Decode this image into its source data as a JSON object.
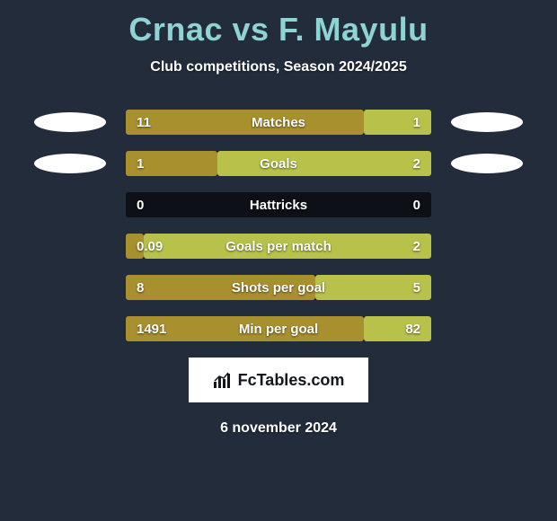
{
  "header": {
    "player1": "Crnac",
    "vs": "vs",
    "player2": "F. Mayulu",
    "subtitle": "Club competitions, Season 2024/2025"
  },
  "colors": {
    "left": "#a8902f",
    "right": "#b8c24a",
    "bar_bg": "#0d1016",
    "background": "#232c3b",
    "title": "#8fd4d4"
  },
  "stats": [
    {
      "label": "Matches",
      "left_val": "11",
      "right_val": "1",
      "left_pct": 78,
      "right_pct": 22,
      "show_badge": true
    },
    {
      "label": "Goals",
      "left_val": "1",
      "right_val": "2",
      "left_pct": 30,
      "right_pct": 70,
      "show_badge": true
    },
    {
      "label": "Hattricks",
      "left_val": "0",
      "right_val": "0",
      "left_pct": 0,
      "right_pct": 0,
      "show_badge": false
    },
    {
      "label": "Goals per match",
      "left_val": "0.09",
      "right_val": "2",
      "left_pct": 6,
      "right_pct": 94,
      "show_badge": false
    },
    {
      "label": "Shots per goal",
      "left_val": "8",
      "right_val": "5",
      "left_pct": 62,
      "right_pct": 38,
      "show_badge": false
    },
    {
      "label": "Min per goal",
      "left_val": "1491",
      "right_val": "82",
      "left_pct": 78,
      "right_pct": 22,
      "show_badge": false
    }
  ],
  "footer": {
    "logo_text": "FcTables.com",
    "date": "6 november 2024"
  }
}
